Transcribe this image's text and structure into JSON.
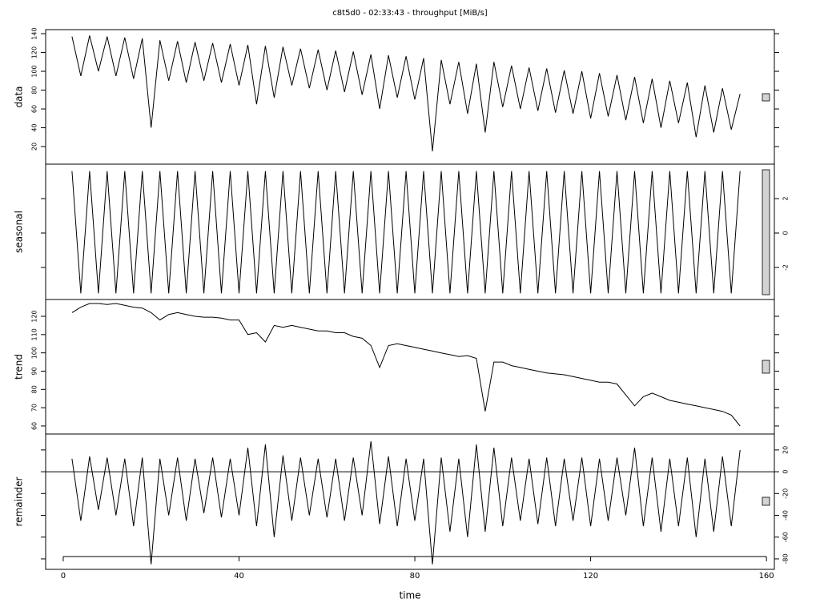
{
  "chart_data": [
    {
      "type": "line",
      "title": "c8t5d0 - 02:33:43 - throughput [MiB/s]",
      "ylabel": "data",
      "color": "#000000",
      "yaxis_side": "left",
      "x": [
        2,
        4,
        6,
        8,
        10,
        12,
        14,
        16,
        18,
        20,
        22,
        24,
        26,
        28,
        30,
        32,
        34,
        36,
        38,
        40,
        42,
        44,
        46,
        48,
        50,
        52,
        54,
        56,
        58,
        60,
        62,
        64,
        66,
        68,
        70,
        72,
        74,
        76,
        78,
        80,
        82,
        84,
        86,
        88,
        90,
        92,
        94,
        96,
        98,
        100,
        102,
        104,
        106,
        108,
        110,
        112,
        114,
        116,
        118,
        120,
        122,
        124,
        126,
        128,
        130,
        132,
        134,
        136,
        138,
        140,
        142,
        144,
        146,
        148,
        150,
        152,
        154
      ],
      "values": [
        137,
        95,
        138,
        100,
        137,
        95,
        136,
        92,
        135,
        40,
        133,
        90,
        132,
        88,
        131,
        90,
        130,
        88,
        129,
        85,
        128,
        65,
        127,
        72,
        126,
        85,
        124,
        82,
        123,
        80,
        122,
        78,
        121,
        75,
        118,
        60,
        117,
        72,
        116,
        70,
        114,
        15,
        112,
        65,
        110,
        55,
        108,
        35,
        110,
        62,
        106,
        60,
        104,
        58,
        103,
        56,
        101,
        55,
        100,
        50,
        98,
        52,
        96,
        48,
        94,
        45,
        92,
        40,
        90,
        45,
        88,
        30,
        85,
        35,
        82,
        38,
        76
      ],
      "xlim": [
        -4,
        161.8
      ],
      "ylim": [
        1.3,
        144.3
      ],
      "yticks": [
        20,
        40,
        60,
        80,
        100,
        120,
        140
      ]
    },
    {
      "type": "line",
      "ylabel": "seasonal",
      "color": "#000000",
      "yaxis_side": "right",
      "x": [
        2,
        4,
        6,
        8,
        10,
        12,
        14,
        16,
        18,
        20,
        22,
        24,
        26,
        28,
        30,
        32,
        34,
        36,
        38,
        40,
        42,
        44,
        46,
        48,
        50,
        52,
        54,
        56,
        58,
        60,
        62,
        64,
        66,
        68,
        70,
        72,
        74,
        76,
        78,
        80,
        82,
        84,
        86,
        88,
        90,
        92,
        94,
        96,
        98,
        100,
        102,
        104,
        106,
        108,
        110,
        112,
        114,
        116,
        118,
        120,
        122,
        124,
        126,
        128,
        130,
        132,
        134,
        136,
        138,
        140,
        142,
        144,
        146,
        148,
        150,
        152,
        154
      ],
      "values": [
        3.6,
        -3.5,
        3.6,
        -3.5,
        3.6,
        -3.5,
        3.6,
        -3.5,
        3.6,
        -3.5,
        3.6,
        -3.5,
        3.6,
        -3.5,
        3.6,
        -3.5,
        3.6,
        -3.5,
        3.6,
        -3.5,
        3.6,
        -3.5,
        3.6,
        -3.5,
        3.6,
        -3.5,
        3.6,
        -3.5,
        3.6,
        -3.5,
        3.6,
        -3.5,
        3.6,
        -3.5,
        3.6,
        -3.5,
        3.6,
        -3.5,
        3.6,
        -3.5,
        3.6,
        -3.5,
        3.6,
        -3.5,
        3.6,
        -3.5,
        3.6,
        -3.5,
        3.6,
        -3.5,
        3.6,
        -3.5,
        3.6,
        -3.5,
        3.6,
        -3.5,
        3.6,
        -3.5,
        3.6,
        -3.5,
        3.6,
        -3.5,
        3.6,
        -3.5,
        3.6,
        -3.5,
        3.6,
        -3.5,
        3.6,
        -3.5,
        3.6,
        -3.5,
        3.6,
        -3.5,
        3.6,
        -3.5,
        3.6
      ],
      "xlim": [
        -4,
        161.8
      ],
      "ylim": [
        -3.86,
        4.0
      ],
      "yticks": [
        -2,
        0,
        2
      ]
    },
    {
      "type": "line",
      "ylabel": "trend",
      "color": "#000000",
      "yaxis_side": "left",
      "x": [
        2,
        4,
        6,
        8,
        10,
        12,
        14,
        16,
        18,
        20,
        22,
        24,
        26,
        28,
        30,
        32,
        34,
        36,
        38,
        40,
        42,
        44,
        46,
        48,
        50,
        52,
        54,
        56,
        58,
        60,
        62,
        64,
        66,
        68,
        70,
        72,
        74,
        76,
        78,
        80,
        82,
        84,
        86,
        88,
        90,
        92,
        94,
        96,
        98,
        100,
        102,
        104,
        106,
        108,
        110,
        112,
        114,
        116,
        118,
        120,
        122,
        124,
        126,
        128,
        130,
        132,
        134,
        136,
        138,
        140,
        142,
        144,
        146,
        148,
        150,
        152,
        154
      ],
      "values": [
        122,
        125,
        127,
        127,
        126.5,
        127,
        126,
        125,
        124.5,
        122,
        118,
        121,
        122,
        121,
        120,
        119.5,
        119.5,
        119,
        118,
        118,
        110,
        111,
        106,
        115,
        114,
        115,
        114,
        113,
        112,
        112,
        111,
        111,
        109,
        108,
        104,
        92,
        104,
        105,
        104,
        103,
        102,
        101,
        100,
        99,
        98,
        98.5,
        97,
        68,
        95,
        95,
        93,
        92,
        91,
        90,
        89,
        88.5,
        88,
        87,
        86,
        85,
        84,
        84,
        83,
        77,
        71,
        76,
        78,
        76,
        74,
        73,
        72,
        71,
        70,
        69,
        68,
        66,
        60
      ],
      "xlim": [
        -4,
        161.8
      ],
      "ylim": [
        55.6,
        129.2
      ],
      "yticks": [
        60,
        70,
        80,
        90,
        100,
        110,
        120
      ]
    },
    {
      "type": "line",
      "ylabel": "remainder",
      "xlabel": "time",
      "color": "#000000",
      "yaxis_side": "right",
      "x": [
        2,
        4,
        6,
        8,
        10,
        12,
        14,
        16,
        18,
        20,
        22,
        24,
        26,
        28,
        30,
        32,
        34,
        36,
        38,
        40,
        42,
        44,
        46,
        48,
        50,
        52,
        54,
        56,
        58,
        60,
        62,
        64,
        66,
        68,
        70,
        72,
        74,
        76,
        78,
        80,
        82,
        84,
        86,
        88,
        90,
        92,
        94,
        96,
        98,
        100,
        102,
        104,
        106,
        108,
        110,
        112,
        114,
        116,
        118,
        120,
        122,
        124,
        126,
        128,
        130,
        132,
        134,
        136,
        138,
        140,
        142,
        144,
        146,
        148,
        150,
        152,
        154
      ],
      "values": [
        12,
        -45,
        14,
        -35,
        13,
        -40,
        12,
        -50,
        13,
        -85,
        12,
        -40,
        13,
        -45,
        12,
        -38,
        13,
        -42,
        12,
        -40,
        22,
        -50,
        25,
        -60,
        15,
        -45,
        13,
        -40,
        12,
        -42,
        12,
        -45,
        13,
        -40,
        28,
        -48,
        14,
        -50,
        12,
        -45,
        12,
        -85,
        13,
        -55,
        12,
        -60,
        25,
        -55,
        22,
        -50,
        13,
        -45,
        12,
        -48,
        13,
        -50,
        12,
        -45,
        13,
        -50,
        12,
        -45,
        13,
        -40,
        22,
        -50,
        13,
        -55,
        12,
        -50,
        13,
        -60,
        12,
        -55,
        14,
        -50,
        20
      ],
      "xlim": [
        -4,
        161.8
      ],
      "ylim": [
        -89.6,
        34.6
      ],
      "yticks": [
        -80,
        -60,
        -40,
        -20,
        0,
        20
      ],
      "xticks": [
        0,
        40,
        80,
        120,
        160
      ]
    }
  ]
}
